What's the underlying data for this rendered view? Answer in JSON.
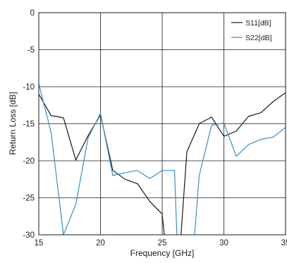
{
  "chart_data": {
    "type": "line",
    "xlabel": "Frequency [GHz]",
    "ylabel": "Return Loss [dB]",
    "xlim": [
      15,
      35
    ],
    "ylim": [
      -30,
      0
    ],
    "xticks": [
      15,
      20,
      25,
      30,
      35
    ],
    "yticks": [
      0,
      -5,
      -10,
      -15,
      -20,
      -25,
      -30
    ],
    "grid": true,
    "legend_position": "top-right",
    "series": [
      {
        "name": "S11[dB]",
        "color": "#1a1a1a",
        "x": [
          15,
          16,
          17,
          18,
          19,
          20,
          21,
          22,
          23,
          24,
          25,
          25.2,
          26.5,
          27,
          28,
          29,
          30,
          31,
          32,
          33,
          34,
          35
        ],
        "y": [
          -11,
          -13.9,
          -14.2,
          -19.9,
          -16.6,
          -13.8,
          -21.3,
          -22.5,
          -23.1,
          -25.5,
          -27.2,
          -30.5,
          -30.5,
          -18.8,
          -15,
          -14.1,
          -16.7,
          -16,
          -14,
          -13.5,
          -12,
          -10.8
        ]
      },
      {
        "name": "S22[dB]",
        "color": "#3a8fc8",
        "x": [
          15,
          16,
          17,
          18,
          19,
          20,
          21,
          22,
          23,
          24,
          25,
          26,
          26.2,
          27.6,
          28,
          29,
          30,
          31,
          32,
          33,
          34,
          35
        ],
        "y": [
          -9.6,
          -16.2,
          -30,
          -25.9,
          -16.9,
          -13.6,
          -22,
          -21.6,
          -21.3,
          -22.4,
          -21.3,
          -21.3,
          -30.5,
          -30.5,
          -22,
          -15.2,
          -14.9,
          -19.4,
          -17.8,
          -17.1,
          -16.8,
          -15.5
        ]
      }
    ]
  }
}
